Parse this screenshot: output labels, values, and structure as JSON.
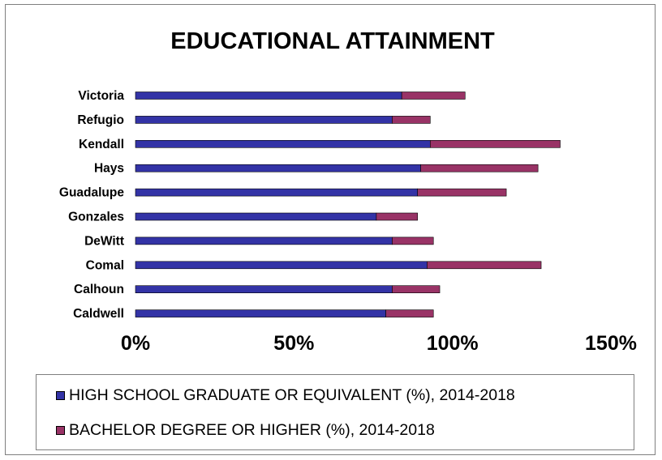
{
  "chart_data": {
    "type": "bar",
    "orientation": "horizontal",
    "stacked": true,
    "title": "EDUCATIONAL ATTAINMENT",
    "categories": [
      "Victoria",
      "Refugio",
      "Kendall",
      "Hays",
      "Guadalupe",
      "Gonzales",
      "DeWitt",
      "Comal",
      "Calhoun",
      "Caldwell"
    ],
    "series": [
      {
        "name": "HIGH SCHOOL GRADUATE OR EQUIVALENT (%), 2014-2018",
        "color": "#3333a6",
        "values": [
          84,
          81,
          93,
          90,
          89,
          76,
          81,
          92,
          81,
          79
        ]
      },
      {
        "name": "BACHELOR DEGREE OR HIGHER (%), 2014-2018",
        "color": "#993366",
        "values": [
          20,
          12,
          41,
          37,
          28,
          13,
          13,
          36,
          15,
          15
        ]
      }
    ],
    "xlim": [
      0,
      150
    ],
    "xticks": [
      0,
      50,
      100,
      150
    ],
    "xtick_labels": [
      "0%",
      "50%",
      "100%",
      "150%"
    ],
    "grid": false,
    "legend_position": "bottom"
  }
}
